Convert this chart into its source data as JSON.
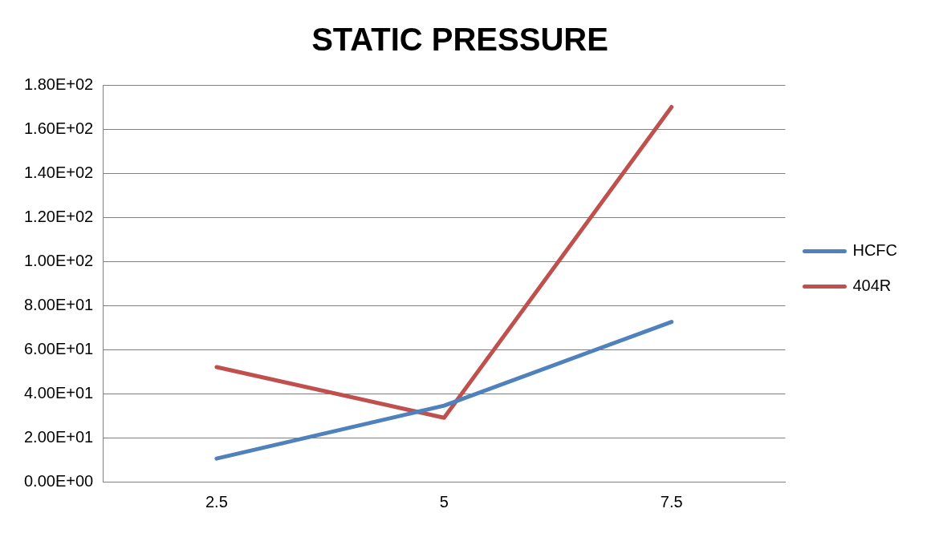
{
  "chart_data": {
    "type": "line",
    "title": "STATIC PRESSURE",
    "categories": [
      "2.5",
      "5",
      "7.5"
    ],
    "series": [
      {
        "name": "HCFC",
        "color": "#4f81bd",
        "values": [
          10.5,
          34.5,
          72.5
        ]
      },
      {
        "name": "404R",
        "color": "#c0504d",
        "values": [
          52,
          29,
          170
        ]
      }
    ],
    "ylim": [
      0,
      180
    ],
    "yticks": [
      {
        "value": 0,
        "label": "0.00E+00"
      },
      {
        "value": 20,
        "label": "2.00E+01"
      },
      {
        "value": 40,
        "label": "4.00E+01"
      },
      {
        "value": 60,
        "label": "6.00E+01"
      },
      {
        "value": 80,
        "label": "8.00E+01"
      },
      {
        "value": 100,
        "label": "1.00E+02"
      },
      {
        "value": 120,
        "label": "1.20E+02"
      },
      {
        "value": 140,
        "label": "1.40E+02"
      },
      {
        "value": 160,
        "label": "1.60E+02"
      },
      {
        "value": 180,
        "label": "1.80E+02"
      }
    ],
    "grid": "y",
    "legend": "right",
    "marker": "none",
    "line_style": "solid"
  }
}
